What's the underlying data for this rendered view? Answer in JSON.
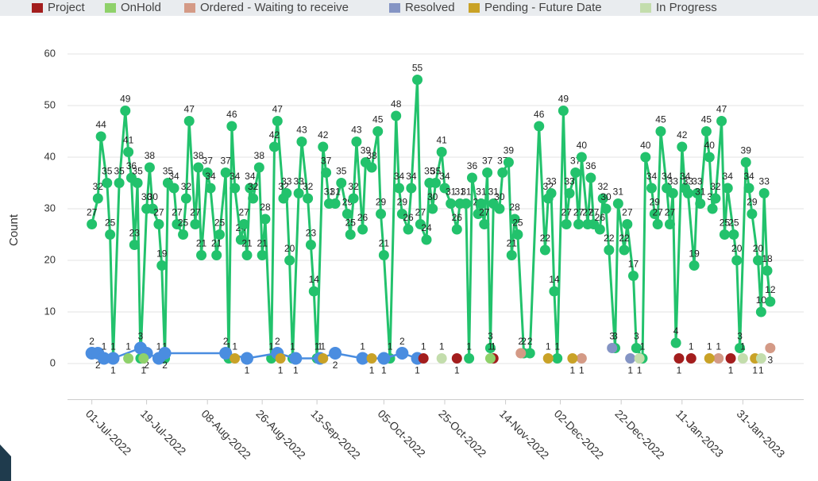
{
  "chart_data": {
    "type": "line",
    "y_label": "Count",
    "xlim": [
      "2022-06-23",
      "2023-02-20"
    ],
    "ylim": [
      -7,
      62
    ],
    "yticks": [
      0,
      10,
      20,
      30,
      40,
      50,
      60
    ],
    "grid": true,
    "xticks": [
      {
        "value": "2022-07-01",
        "label": "01-Jul-2022"
      },
      {
        "value": "2022-07-19",
        "label": "19-Jul-2022"
      },
      {
        "value": "2022-08-08",
        "label": "08-Aug-2022"
      },
      {
        "value": "2022-08-26",
        "label": "26-Aug-2022"
      },
      {
        "value": "2022-09-13",
        "label": "13-Sep-2022"
      },
      {
        "value": "2022-10-05",
        "label": "05-Oct-2022"
      },
      {
        "value": "2022-10-25",
        "label": "25-Oct-2022"
      },
      {
        "value": "2022-11-14",
        "label": "14-Nov-2022"
      },
      {
        "value": "2022-12-02",
        "label": "02-Dec-2022"
      },
      {
        "value": "2022-12-22",
        "label": "22-Dec-2022"
      },
      {
        "value": "2023-01-11",
        "label": "11-Jan-2023"
      },
      {
        "value": "2023-01-31",
        "label": "31-Jan-2023"
      }
    ],
    "series": [
      {
        "color": "#22c26c",
        "x": [
          "2022-07-01",
          "2022-07-03",
          "2022-07-04",
          "2022-07-06",
          "2022-07-07",
          "2022-07-08",
          "2022-07-10",
          "2022-07-12",
          "2022-07-13",
          "2022-07-14",
          "2022-07-15",
          "2022-07-16",
          "2022-07-17",
          "2022-07-19",
          "2022-07-20",
          "2022-07-21",
          "2022-07-23",
          "2022-07-24",
          "2022-07-25",
          "2022-07-26",
          "2022-07-28",
          "2022-07-29",
          "2022-07-31",
          "2022-08-01",
          "2022-08-02",
          "2022-08-04",
          "2022-08-05",
          "2022-08-06",
          "2022-08-08",
          "2022-08-09",
          "2022-08-11",
          "2022-08-12",
          "2022-08-14",
          "2022-08-15",
          "2022-08-16",
          "2022-08-17",
          "2022-08-19",
          "2022-08-20",
          "2022-08-21",
          "2022-08-22",
          "2022-08-23",
          "2022-08-25",
          "2022-08-26",
          "2022-08-27",
          "2022-08-29",
          "2022-08-30",
          "2022-08-31",
          "2022-09-02",
          "2022-09-03",
          "2022-09-04",
          "2022-09-05",
          "2022-09-07",
          "2022-09-08",
          "2022-09-10",
          "2022-09-11",
          "2022-09-12",
          "2022-09-13",
          "2022-09-15",
          "2022-09-16",
          "2022-09-17",
          "2022-09-19",
          "2022-09-21",
          "2022-09-23",
          "2022-09-24",
          "2022-09-25",
          "2022-09-26",
          "2022-09-28",
          "2022-09-29",
          "2022-10-01",
          "2022-10-03",
          "2022-10-04",
          "2022-10-05",
          "2022-10-07",
          "2022-10-09",
          "2022-10-10",
          "2022-10-11",
          "2022-10-13",
          "2022-10-14",
          "2022-10-16",
          "2022-10-17",
          "2022-10-19",
          "2022-10-20",
          "2022-10-21",
          "2022-10-22",
          "2022-10-24",
          "2022-10-25",
          "2022-10-27",
          "2022-10-29",
          "2022-10-30",
          "2022-11-01",
          "2022-11-02",
          "2022-11-03",
          "2022-11-05",
          "2022-11-06",
          "2022-11-07",
          "2022-11-08",
          "2022-11-09",
          "2022-11-10",
          "2022-11-12",
          "2022-11-13",
          "2022-11-15",
          "2022-11-16",
          "2022-11-17",
          "2022-11-18",
          "2022-11-20",
          "2022-11-22",
          "2022-11-25",
          "2022-11-27",
          "2022-11-28",
          "2022-11-29",
          "2022-11-30",
          "2022-12-01",
          "2022-12-03",
          "2022-12-04",
          "2022-12-05",
          "2022-12-07",
          "2022-12-08",
          "2022-12-09",
          "2022-12-11",
          "2022-12-12",
          "2022-12-13",
          "2022-12-15",
          "2022-12-16",
          "2022-12-17",
          "2022-12-18",
          "2022-12-20",
          "2022-12-21",
          "2022-12-23",
          "2022-12-24",
          "2022-12-26",
          "2022-12-27",
          "2022-12-29",
          "2022-12-30",
          "2023-01-01",
          "2023-01-02",
          "2023-01-03",
          "2023-01-04",
          "2023-01-06",
          "2023-01-07",
          "2023-01-08",
          "2023-01-09",
          "2023-01-11",
          "2023-01-12",
          "2023-01-13",
          "2023-01-15",
          "2023-01-16",
          "2023-01-17",
          "2023-01-19",
          "2023-01-20",
          "2023-01-21",
          "2023-01-22",
          "2023-01-24",
          "2023-01-25",
          "2023-01-26",
          "2023-01-28",
          "2023-01-29",
          "2023-01-30",
          "2023-02-01",
          "2023-02-02",
          "2023-02-03",
          "2023-02-05",
          "2023-02-06",
          "2023-02-07",
          "2023-02-08",
          "2023-02-09"
        ],
        "values": [
          27,
          32,
          44,
          35,
          25,
          1,
          35,
          49,
          41,
          36,
          23,
          35,
          1,
          30,
          38,
          30,
          27,
          19,
          1,
          35,
          34,
          27,
          25,
          32,
          47,
          27,
          38,
          21,
          37,
          34,
          21,
          25,
          37,
          1,
          46,
          34,
          24,
          27,
          21,
          34,
          32,
          38,
          21,
          28,
          1,
          42,
          47,
          32,
          33,
          20,
          1,
          33,
          43,
          32,
          23,
          14,
          1,
          42,
          37,
          31,
          31,
          35,
          29,
          25,
          32,
          43,
          26,
          39,
          38,
          45,
          29,
          21,
          1,
          48,
          34,
          29,
          26,
          34,
          55,
          27,
          24,
          35,
          30,
          35,
          41,
          34,
          31,
          26,
          31,
          31,
          1,
          36,
          29,
          31,
          27,
          37,
          3,
          31,
          30,
          37,
          39,
          21,
          28,
          25,
          2,
          2,
          46,
          22,
          32,
          33,
          14,
          1,
          49,
          27,
          33,
          37,
          27,
          40,
          27,
          36,
          27,
          26,
          32,
          30,
          22,
          3,
          31,
          22,
          27,
          17,
          3,
          1,
          40,
          34,
          29,
          27,
          45,
          34,
          27,
          33,
          4,
          42,
          34,
          33,
          19,
          33,
          31,
          45,
          40,
          30,
          32,
          47,
          25,
          34,
          25,
          20,
          3,
          39,
          34,
          29,
          20,
          10,
          33,
          18,
          12
        ]
      },
      {
        "color": "#4a8de0",
        "x": [
          "2022-07-01",
          "2022-07-03",
          "2022-07-05",
          "2022-07-08",
          "2022-07-17",
          "2022-07-19",
          "2022-07-23",
          "2022-07-25",
          "2022-08-14",
          "2022-08-21",
          "2022-08-31",
          "2022-09-06",
          "2022-09-14",
          "2022-09-19",
          "2022-09-28",
          "2022-10-05",
          "2022-10-11",
          "2022-10-16"
        ],
        "values": [
          2,
          2,
          1,
          1,
          3,
          2,
          1,
          2,
          2,
          1,
          2,
          1,
          1,
          2,
          1,
          1,
          2,
          1
        ]
      },
      {
        "name": "Project",
        "color": "#a31d1d",
        "x": [
          "2022-10-18",
          "2022-10-29",
          "2022-11-10",
          "2023-01-10",
          "2023-01-14",
          "2023-01-27"
        ],
        "values": [
          1,
          1,
          1,
          1,
          1,
          1
        ]
      },
      {
        "name": "OnHold",
        "color": "#8fd16a",
        "x": [
          "2022-07-13",
          "2022-07-18",
          "2022-11-09"
        ],
        "values": [
          1,
          1,
          1
        ]
      },
      {
        "name": "Ordered - Waiting to receive",
        "color": "#d49a86",
        "x": [
          "2022-11-19",
          "2022-12-09",
          "2023-01-23",
          "2023-02-09"
        ],
        "values": [
          2,
          1,
          1,
          3
        ]
      },
      {
        "name": "Resolved",
        "color": "#8494c4",
        "x": [
          "2022-12-19",
          "2022-12-25"
        ],
        "values": [
          3,
          1
        ]
      },
      {
        "name": "Pending - Future Date",
        "color": "#c9a227",
        "x": [
          "2022-08-17",
          "2022-09-01",
          "2022-09-15",
          "2022-10-01",
          "2022-11-28",
          "2022-12-06",
          "2023-01-20",
          "2023-02-04"
        ],
        "values": [
          1,
          1,
          1,
          1,
          1,
          1,
          1,
          1
        ]
      },
      {
        "name": "In Progress",
        "color": "#c3ddac",
        "x": [
          "2022-10-24",
          "2022-12-28",
          "2023-01-31",
          "2023-02-06"
        ],
        "values": [
          1,
          1,
          1,
          1
        ]
      }
    ]
  }
}
